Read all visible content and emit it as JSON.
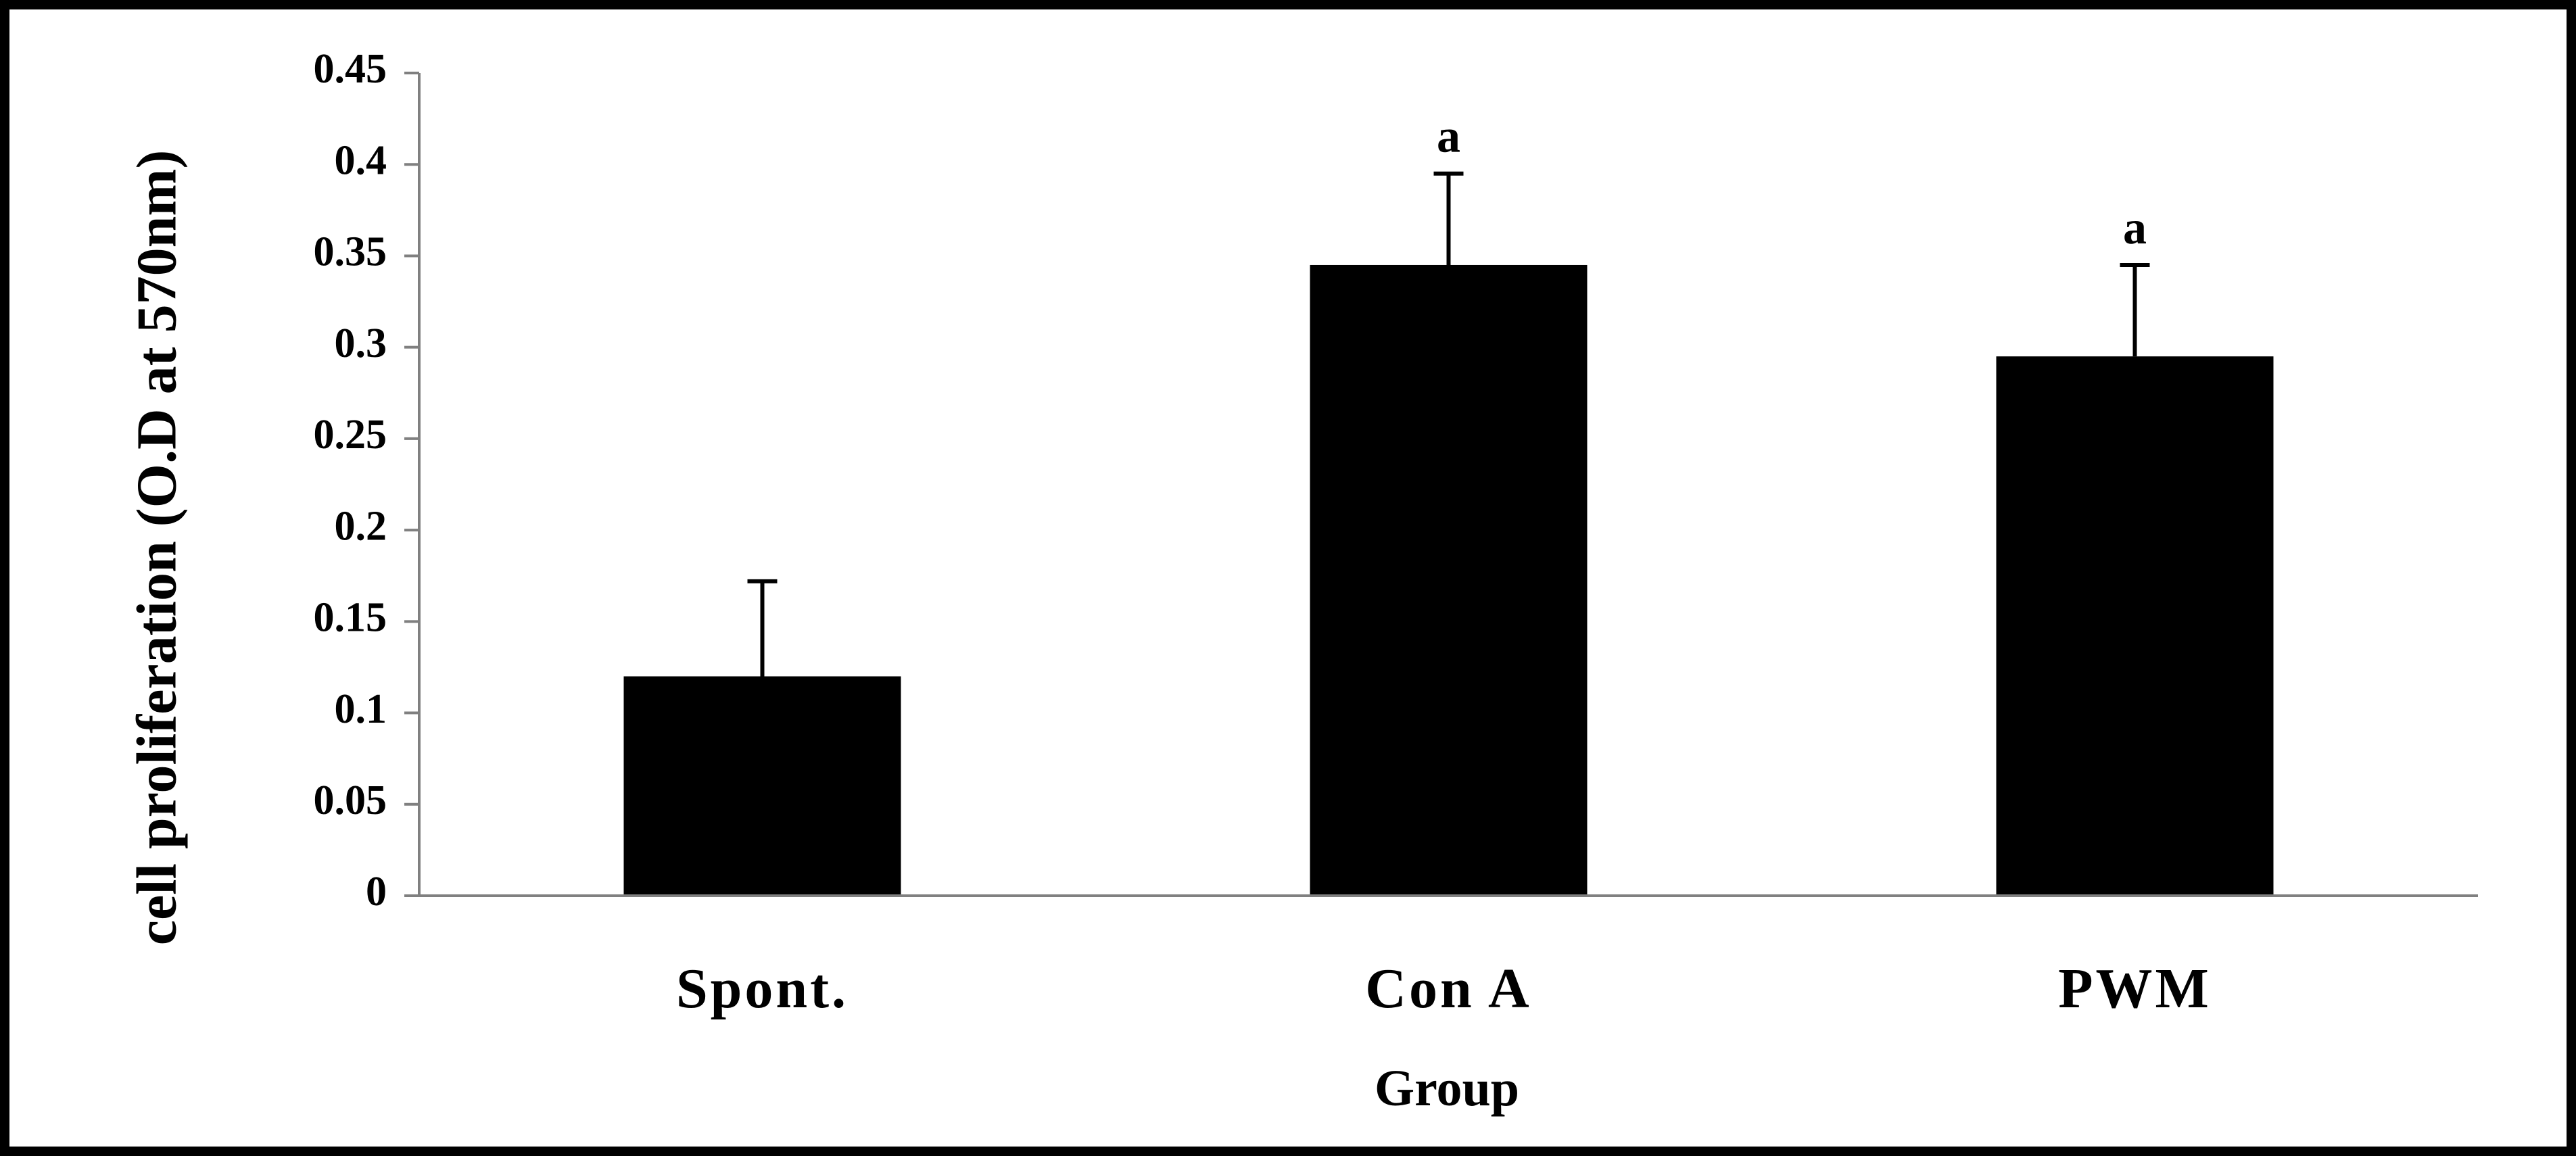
{
  "chart_data": {
    "type": "bar",
    "title": "",
    "xlabel": "Group",
    "ylabel": "cell proliferation (O.D at 570nm)",
    "categories": [
      "Spont.",
      "Con A",
      "PWM"
    ],
    "values": [
      0.12,
      0.345,
      0.295
    ],
    "error_bars": [
      0.052,
      0.05,
      0.05
    ],
    "annotations": [
      "",
      "a",
      "a"
    ],
    "ylim": [
      0,
      0.45
    ],
    "yticks": [
      0,
      0.05,
      0.1,
      0.15,
      0.2,
      0.25,
      0.3,
      0.35,
      0.4,
      0.45
    ],
    "ytick_labels": [
      "0",
      "0.05",
      "0.1",
      "0.15",
      "0.2",
      "0.25",
      "0.3",
      "0.35",
      "0.4",
      "0.45"
    ],
    "grid": false,
    "legend": "none",
    "colors": {
      "bar": "#000000",
      "axis": "#808080",
      "frame": "#000000"
    }
  }
}
